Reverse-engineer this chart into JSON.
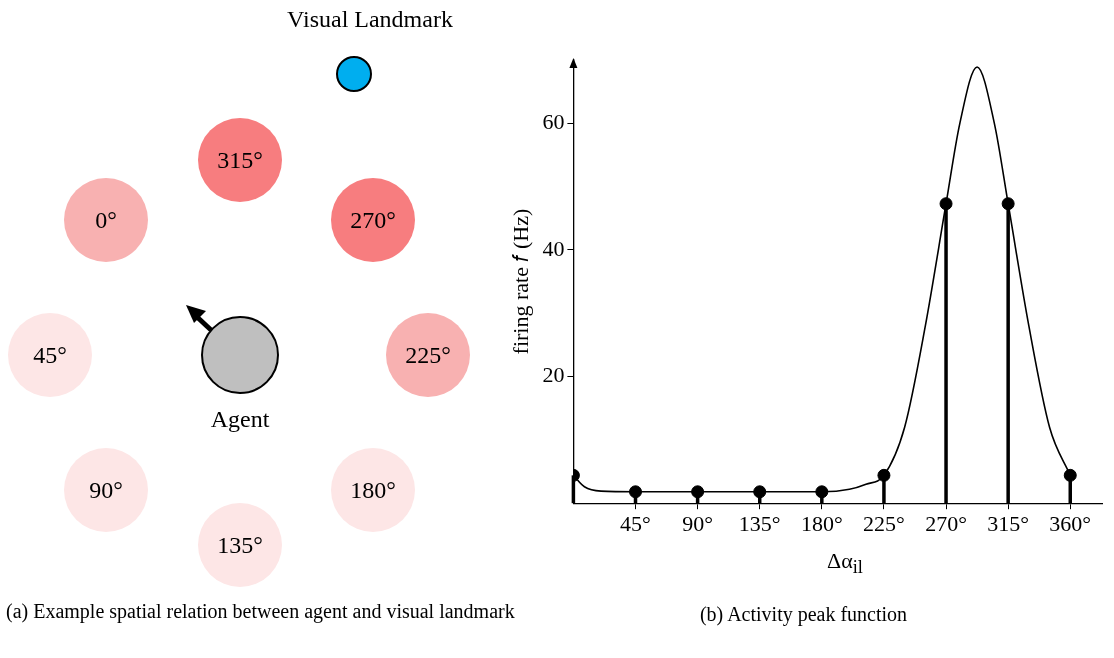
{
  "chart_data": [
    {
      "type": "other",
      "title": "(a) Example spatial relation between agent and visual landmark",
      "annotations": [
        "Visual Landmark",
        "315°",
        "270°",
        "0°",
        "45°",
        "225°",
        "90°",
        "180°",
        "135°",
        "Agent"
      ]
    },
    {
      "type": "line",
      "title": "(b) Activity peak function",
      "xlabel": "Δα$_{il}$",
      "ylabel": "firing rate 𝑓 (Hz)",
      "xlim": [
        0,
        383
      ],
      "ylim": [
        0,
        70
      ],
      "xticks": [
        {
          "value": 45,
          "label": "45°"
        },
        {
          "value": 90,
          "label": "90°"
        },
        {
          "value": 135,
          "label": "135°"
        },
        {
          "value": 180,
          "label": "180°"
        },
        {
          "value": 225,
          "label": "225°"
        },
        {
          "value": 270,
          "label": "270°"
        },
        {
          "value": 315,
          "label": "315°"
        },
        {
          "value": 360,
          "label": "360°"
        }
      ],
      "yticks": [
        20,
        40,
        60
      ],
      "grid": false,
      "legend": false,
      "series": [
        {
          "type": "line",
          "color": "#000000",
          "marker": "none",
          "x": [
            0,
            8,
            20,
            45,
            90,
            135,
            180,
            200,
            212,
            225,
            240,
            255,
            270,
            280,
            292.5,
            305,
            315,
            330,
            345,
            360
          ],
          "values": [
            4.4,
            2.6,
            1.9,
            1.8,
            1.8,
            1.8,
            1.8,
            2.2,
            3,
            4.4,
            12,
            28,
            47.3,
            60,
            68.9,
            60,
            47.3,
            28,
            12,
            4.4
          ]
        },
        {
          "type": "lollipop",
          "color": "#000000",
          "marker": "circle",
          "x": [
            0,
            45,
            90,
            135,
            180,
            225,
            270,
            315,
            360
          ],
          "values": [
            4.4,
            1.8,
            1.8,
            1.8,
            1.8,
            4.4,
            47.3,
            47.3,
            4.4
          ]
        }
      ]
    }
  ]
}
